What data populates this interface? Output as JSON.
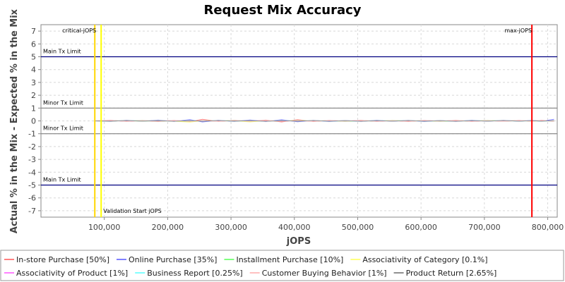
{
  "chart_data": {
    "type": "line",
    "title": "Request Mix Accuracy",
    "xlabel": "jOPS",
    "ylabel": "Actual % in the Mix - Expected % in the Mix",
    "xlim": [
      0,
      815000
    ],
    "ylim": [
      -7.5,
      7.5
    ],
    "x_ticks": [
      100000,
      200000,
      300000,
      400000,
      500000,
      600000,
      700000,
      800000
    ],
    "x_tick_labels": [
      "100,000",
      "200,000",
      "300,000",
      "400,000",
      "500,000",
      "600,000",
      "700,000",
      "800,000"
    ],
    "y_ticks": [
      7,
      6,
      5,
      4,
      3,
      2,
      1,
      0,
      -1,
      -2,
      -3,
      -4,
      -5,
      -6,
      -7
    ],
    "y_tick_labels": [
      "7",
      "6",
      "5",
      "4",
      "3",
      "2",
      "1",
      "0",
      "-1",
      "-2",
      "-3",
      "-4",
      "-5",
      "-6",
      "-7"
    ],
    "grid": true,
    "legend_position": "bottom",
    "horizontal_lines": [
      {
        "y": 5,
        "label": "Main Tx Limit",
        "color": "#000080"
      },
      {
        "y": 1,
        "label": "Minor Tx Limit",
        "color": "#808080"
      },
      {
        "y": -1,
        "label": "Minor Tx Limit",
        "color": "#808080"
      },
      {
        "y": -5,
        "label": "Main Tx Limit",
        "color": "#000080"
      }
    ],
    "vertical_lines": [
      {
        "x": 85000,
        "label": "critical-jOPS",
        "color": "#ffd700"
      },
      {
        "x": 95000,
        "label": "Validation Start jOPS",
        "color": "#ffff00"
      },
      {
        "x": 775000,
        "label": "max-jOPS",
        "color": "#ff0000"
      }
    ],
    "series": [
      {
        "name": "In-store Purchase [50%]",
        "color": "#ff8080",
        "x": [
          85000,
          110000,
          135000,
          160000,
          185000,
          210000,
          235000,
          255000,
          280000,
          305000,
          330000,
          355000,
          380000,
          405000,
          430000,
          455000,
          480000,
          505000,
          530000,
          555000,
          580000,
          605000,
          630000,
          655000,
          680000,
          705000,
          730000,
          755000,
          775000,
          790000,
          810000
        ],
        "values": [
          0,
          0.05,
          -0.04,
          0.03,
          -0.05,
          0.04,
          -0.06,
          0.12,
          -0.04,
          0.05,
          -0.03,
          0.06,
          -0.08,
          0.1,
          -0.05,
          0.04,
          -0.03,
          0.05,
          -0.04,
          0.03,
          -0.05,
          0.04,
          -0.03,
          0.05,
          -0.04,
          0.03,
          -0.02,
          0.04,
          -0.03,
          0.05,
          -0.02
        ]
      },
      {
        "name": "Online Purchase [35%]",
        "color": "#8080ff",
        "x": [
          85000,
          110000,
          135000,
          160000,
          185000,
          210000,
          235000,
          255000,
          280000,
          305000,
          330000,
          355000,
          380000,
          405000,
          430000,
          455000,
          480000,
          505000,
          530000,
          555000,
          580000,
          605000,
          630000,
          655000,
          680000,
          705000,
          730000,
          755000,
          775000,
          790000,
          810000
        ],
        "values": [
          0,
          -0.04,
          0.05,
          -0.03,
          0.06,
          -0.04,
          0.1,
          -0.08,
          0.05,
          -0.04,
          0.07,
          -0.05,
          0.09,
          -0.07,
          0.04,
          -0.05,
          0.03,
          -0.04,
          0.05,
          -0.03,
          0.04,
          -0.05,
          0.03,
          -0.04,
          0.05,
          -0.03,
          0.04,
          -0.03,
          0.04,
          -0.03,
          0.12
        ]
      },
      {
        "name": "Installment Purchase [10%]",
        "color": "#80ff80",
        "x": [
          85000,
          110000,
          135000,
          160000,
          185000,
          210000,
          235000,
          255000,
          280000,
          305000,
          330000,
          355000,
          380000,
          405000,
          430000,
          455000,
          480000,
          505000,
          530000,
          555000,
          580000,
          605000,
          630000,
          655000,
          680000,
          705000,
          730000,
          755000,
          775000,
          790000,
          810000
        ],
        "values": [
          0,
          0.03,
          -0.02,
          0.04,
          -0.03,
          0.02,
          -0.04,
          0.03,
          -0.02,
          0.04,
          -0.03,
          0.02,
          -0.03,
          0.04,
          -0.02,
          0.03,
          -0.04,
          0.02,
          -0.03,
          0.04,
          -0.02,
          0.03,
          -0.04,
          0.02,
          -0.03,
          0.04,
          -0.02,
          0.03,
          -0.02,
          0.03,
          -0.02
        ]
      },
      {
        "name": "Associativity of Category [0.1%]",
        "color": "#ffff80",
        "x": [
          85000,
          110000,
          135000,
          160000,
          185000,
          210000,
          235000,
          255000,
          280000,
          305000,
          330000,
          355000,
          380000,
          405000,
          430000,
          455000,
          480000,
          505000,
          530000,
          555000,
          580000,
          605000,
          630000,
          655000,
          680000,
          705000,
          730000,
          755000,
          775000,
          790000,
          810000
        ],
        "values": [
          0,
          -0.02,
          0.02,
          -0.03,
          0.02,
          -0.02,
          -0.1,
          0.02,
          -0.03,
          0.02,
          -0.08,
          0.03,
          -0.02,
          0.02,
          -0.03,
          0.02,
          -0.02,
          0.03,
          -0.02,
          0.02,
          -0.03,
          0.02,
          -0.02,
          0.03,
          -0.02,
          0.02,
          -0.03,
          0.02,
          -0.02,
          0.02,
          -0.02
        ]
      },
      {
        "name": "Associativity of Product [1%]",
        "color": "#ff80ff",
        "x": [
          85000,
          110000,
          135000,
          160000,
          185000,
          210000,
          235000,
          255000,
          280000,
          305000,
          330000,
          355000,
          380000,
          405000,
          430000,
          455000,
          480000,
          505000,
          530000,
          555000,
          580000,
          605000,
          630000,
          655000,
          680000,
          705000,
          730000,
          755000,
          775000,
          790000,
          810000
        ],
        "values": [
          0,
          0.02,
          -0.02,
          0.02,
          -0.01,
          0.02,
          -0.02,
          0.01,
          -0.02,
          0.02,
          -0.01,
          0.02,
          -0.02,
          0.01,
          -0.02,
          0.02,
          -0.01,
          0.02,
          -0.02,
          0.01,
          -0.02,
          0.02,
          -0.01,
          0.02,
          -0.02,
          0.01,
          -0.02,
          0.02,
          -0.01,
          0.02,
          -0.01
        ]
      },
      {
        "name": "Business Report [0.25%]",
        "color": "#80ffff",
        "x": [
          85000,
          110000,
          135000,
          160000,
          185000,
          210000,
          235000,
          255000,
          280000,
          305000,
          330000,
          355000,
          380000,
          405000,
          430000,
          455000,
          480000,
          505000,
          530000,
          555000,
          580000,
          605000,
          630000,
          655000,
          680000,
          705000,
          730000,
          755000,
          775000,
          790000,
          810000
        ],
        "values": [
          0,
          -0.01,
          0.02,
          -0.02,
          0.01,
          -0.02,
          0.02,
          -0.01,
          0.02,
          -0.02,
          0.01,
          -0.02,
          0.02,
          -0.01,
          0.02,
          -0.02,
          0.01,
          -0.02,
          0.02,
          -0.01,
          0.02,
          -0.02,
          0.01,
          -0.02,
          0.02,
          -0.01,
          0.02,
          -0.02,
          0.01,
          -0.02,
          0.01
        ]
      },
      {
        "name": "Customer Buying Behavior [1%]",
        "color": "#ffc0c0",
        "x": [
          85000,
          110000,
          135000,
          160000,
          185000,
          210000,
          235000,
          255000,
          280000,
          305000,
          330000,
          355000,
          380000,
          405000,
          430000,
          455000,
          480000,
          505000,
          530000,
          555000,
          580000,
          605000,
          630000,
          655000,
          680000,
          705000,
          730000,
          755000,
          775000,
          790000,
          810000
        ],
        "values": [
          0,
          0.02,
          -0.03,
          0.02,
          -0.02,
          0.03,
          -0.02,
          0.02,
          -0.03,
          0.02,
          -0.02,
          0.03,
          -0.02,
          0.02,
          -0.03,
          0.02,
          -0.02,
          0.03,
          -0.02,
          0.02,
          -0.03,
          0.02,
          -0.02,
          0.03,
          -0.02,
          0.02,
          -0.03,
          0.02,
          -0.02,
          0.02,
          -0.02
        ]
      },
      {
        "name": "Product Return [2.65%]",
        "color": "#909090",
        "x": [
          85000,
          110000,
          135000,
          160000,
          185000,
          210000,
          235000,
          255000,
          280000,
          305000,
          330000,
          355000,
          380000,
          405000,
          430000,
          455000,
          480000,
          505000,
          530000,
          555000,
          580000,
          605000,
          630000,
          655000,
          680000,
          705000,
          730000,
          755000,
          775000,
          790000,
          810000
        ],
        "values": [
          0,
          -0.02,
          0.03,
          -0.02,
          0.02,
          -0.03,
          0.02,
          -0.02,
          0.03,
          -0.02,
          0.02,
          -0.03,
          0.02,
          -0.02,
          0.03,
          -0.02,
          0.02,
          -0.03,
          0.02,
          -0.02,
          0.03,
          -0.02,
          0.02,
          -0.03,
          0.02,
          -0.02,
          0.03,
          -0.02,
          0.02,
          -0.02,
          0.02
        ]
      }
    ]
  }
}
